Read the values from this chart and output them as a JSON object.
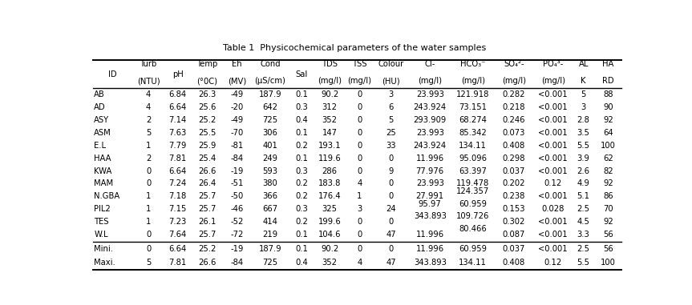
{
  "title": "Table 1  Physicochemical parameters of the water samples",
  "header_line1": [
    "ID",
    "Turb",
    "pH",
    "Temp",
    "Eh",
    "Cond",
    "Sal",
    "TDS",
    "TSS",
    "Colour",
    "Cl-",
    "HCO₃⁻",
    "SO₄²-",
    "PO₄³-",
    "AL",
    "HA"
  ],
  "header_line2": [
    "",
    "(NTU)",
    "",
    "(°0C)",
    "(MV)",
    "(µS/cm)",
    "",
    "(mg/l)",
    "(mg/l)",
    "(HU)",
    "(mg/l)",
    "(mg/l)",
    "(mg/l)",
    "(mg/l)",
    "K",
    "RD"
  ],
  "rows": [
    {
      "cells": [
        "AB",
        "4",
        "6.84",
        "26.3",
        "-49",
        "187.9",
        "0.1",
        "90.2",
        "0",
        "3",
        "23.993",
        "121.918",
        "0.282",
        "<0.001",
        "5",
        "88"
      ],
      "extra": {}
    },
    {
      "cells": [
        "AD",
        "4",
        "6.64",
        "25.6",
        "-20",
        "642",
        "0.3",
        "312",
        "0",
        "6",
        "243.924",
        "73.151",
        "0.218",
        "<0.001",
        "3",
        "90"
      ],
      "extra": {}
    },
    {
      "cells": [
        "ASY",
        "2",
        "7.14",
        "25.2",
        "-49",
        "725",
        "0.4",
        "352",
        "0",
        "5",
        "293.909",
        "68.274",
        "0.246",
        "<0.001",
        "2.8",
        "92"
      ],
      "extra": {}
    },
    {
      "cells": [
        "ASM",
        "5",
        "7.63",
        "25.5",
        "-70",
        "306",
        "0.1",
        "147",
        "0",
        "25",
        "23.993",
        "85.342",
        "0.073",
        "<0.001",
        "3.5",
        "64"
      ],
      "extra": {}
    },
    {
      "cells": [
        "E.L",
        "1",
        "7.79",
        "25.9",
        "-81",
        "401",
        "0.2",
        "193.1",
        "0",
        "33",
        "243.924",
        "134.11",
        "0.408",
        "<0.001",
        "5.5",
        "100"
      ],
      "extra": {}
    },
    {
      "cells": [
        "HAA",
        "2",
        "7.81",
        "25.4",
        "-84",
        "249",
        "0.1",
        "119.6",
        "0",
        "0",
        "11.996",
        "95.096",
        "0.298",
        "<0.001",
        "3.9",
        "62"
      ],
      "extra": {}
    },
    {
      "cells": [
        "KWA",
        "0",
        "6.64",
        "26.6",
        "-19",
        "593",
        "0.3",
        "286",
        "0",
        "9",
        "77.976",
        "63.397",
        "0.037",
        "<0.001",
        "2.6",
        "82"
      ],
      "extra": {}
    },
    {
      "cells": [
        "MAM",
        "0",
        "7.24",
        "26.4",
        "-51",
        "380",
        "0.2",
        "183.8",
        "4",
        "0",
        "23.993",
        "119.478",
        "0.202",
        "0.12",
        "4.9",
        "92"
      ],
      "extra": {}
    },
    {
      "cells": [
        "N.GBA",
        "1",
        "7.18",
        "25.7",
        "-50",
        "366",
        "0.2",
        "176.4",
        "1",
        "0",
        "27.991",
        "124.357",
        "0.238",
        "<0.001",
        "5.1",
        "86"
      ],
      "extra": {}
    },
    {
      "cells": [
        "PIL2",
        "1",
        "7.15",
        "25.7",
        "-46",
        "667",
        "0.3",
        "325",
        "3",
        "24",
        "95.97",
        "60.959",
        "0.153",
        "0.028",
        "2.5",
        "70"
      ],
      "extra": {}
    },
    {
      "cells": [
        "TES",
        "1",
        "7.23",
        "26.1",
        "-52",
        "414",
        "0.2",
        "199.6",
        "0",
        "0",
        "",
        "109.726",
        "0.302",
        "<0.001",
        "4.5",
        "92"
      ],
      "extra": {
        "cl_top": "343.893",
        "cl_bot": "",
        "hco_top_prev": "60.959"
      }
    },
    {
      "cells": [
        "W.L",
        "0",
        "7.64",
        "25.7",
        "-72",
        "219",
        "0.1",
        "104.6",
        "0",
        "47",
        "11.996",
        "",
        "0.087",
        "<0.001",
        "3.3",
        "56"
      ],
      "extra": {
        "hco3_top": "80.466"
      }
    }
  ],
  "summary_rows": [
    [
      "Mini.",
      "0",
      "6.64",
      "25.2",
      "-19",
      "187.9",
      "0.1",
      "90.2",
      "0",
      "0",
      "11.996",
      "60.959",
      "0.037",
      "<0.001",
      "2.5",
      "56"
    ],
    [
      "Maxi.",
      "5",
      "7.81",
      "26.6",
      "-84",
      "725",
      "0.4",
      "352",
      "4",
      "47",
      "343.893",
      "134.11",
      "0.408",
      "0.12",
      "5.5",
      "100"
    ]
  ],
  "col_widths": [
    5.0,
    4.2,
    3.3,
    4.2,
    3.5,
    5.0,
    3.0,
    4.2,
    3.5,
    4.5,
    5.5,
    5.5,
    5.0,
    5.0,
    2.8,
    3.5
  ],
  "background_color": "#ffffff",
  "font_size": 7.2,
  "title_font_size": 8.0
}
